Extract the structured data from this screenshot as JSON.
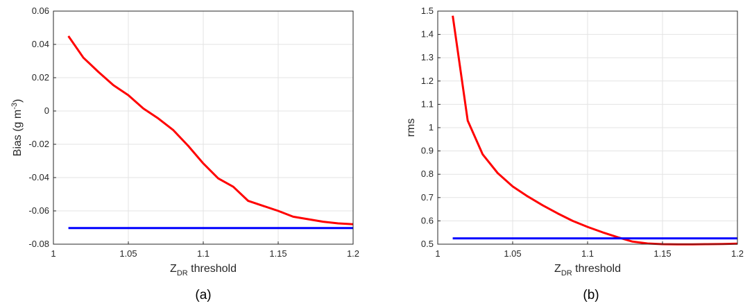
{
  "chart_data": [
    {
      "type": "line",
      "panel_label": "(a)",
      "xlabel_main": "Z",
      "xlabel_sub": "DR",
      "xlabel_rest": " threshold",
      "ylabel_main": "Bias (g m",
      "ylabel_sup": "-3",
      "ylabel_end": ")",
      "xlim": [
        1,
        1.2
      ],
      "ylim": [
        -0.08,
        0.06
      ],
      "xticks": [
        "1",
        "1.05",
        "1.1",
        "1.15",
        "1.2"
      ],
      "yticks": [
        "0.06",
        "0.04",
        "0.02",
        "0",
        "-0.02",
        "-0.04",
        "-0.06",
        "-0.08"
      ],
      "grid": true,
      "series": [
        {
          "color": "#ff0000",
          "x": [
            1.01,
            1.02,
            1.03,
            1.04,
            1.05,
            1.06,
            1.07,
            1.08,
            1.09,
            1.1,
            1.11,
            1.12,
            1.13,
            1.14,
            1.15,
            1.16,
            1.17,
            1.18,
            1.19,
            1.2
          ],
          "y": [
            0.045,
            0.032,
            0.0235,
            0.0155,
            0.0095,
            0.0015,
            -0.0045,
            -0.0115,
            -0.021,
            -0.0315,
            -0.0405,
            -0.0455,
            -0.054,
            -0.057,
            -0.06,
            -0.0635,
            -0.065,
            -0.0665,
            -0.0675,
            -0.068
          ]
        },
        {
          "color": "#0000ff",
          "x": [
            1.01,
            1.2
          ],
          "y": [
            -0.0703,
            -0.0703
          ]
        }
      ]
    },
    {
      "type": "line",
      "panel_label": "(b)",
      "xlabel_main": "Z",
      "xlabel_sub": "DR",
      "xlabel_rest": " threshold",
      "ylabel_main": "rms",
      "xlim": [
        1,
        1.2
      ],
      "ylim": [
        0.5,
        1.5
      ],
      "xticks": [
        "1",
        "1.05",
        "1.1",
        "1.15",
        "1.2"
      ],
      "yticks": [
        "1.5",
        "1.4",
        "1.3",
        "1.2",
        "1.1",
        "1",
        "0.9",
        "0.8",
        "0.7",
        "0.6",
        "0.5"
      ],
      "grid": true,
      "series": [
        {
          "color": "#ff0000",
          "x": [
            1.01,
            1.02,
            1.03,
            1.04,
            1.05,
            1.06,
            1.07,
            1.08,
            1.09,
            1.1,
            1.11,
            1.12,
            1.13,
            1.14,
            1.15,
            1.16,
            1.17,
            1.18,
            1.19,
            1.2
          ],
          "y": [
            1.48,
            1.03,
            0.885,
            0.805,
            0.748,
            0.705,
            0.667,
            0.632,
            0.6,
            0.574,
            0.551,
            0.53,
            0.511,
            0.503,
            0.5,
            0.499,
            0.499,
            0.5,
            0.501,
            0.502
          ]
        },
        {
          "color": "#0000ff",
          "x": [
            1.01,
            1.2
          ],
          "y": [
            0.525,
            0.525
          ]
        }
      ]
    }
  ]
}
